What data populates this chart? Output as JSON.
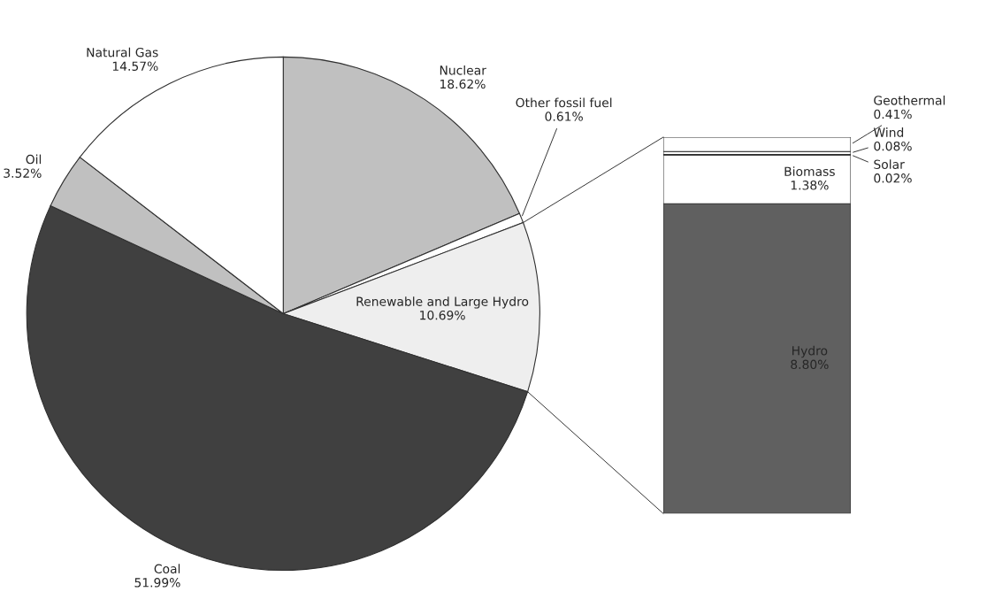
{
  "chart_data": [
    {
      "type": "pie",
      "categories": [
        "Nuclear",
        "Other fossil fuel",
        "Renewable and Large Hydro",
        "Coal",
        "Oil",
        "Natural Gas"
      ],
      "values": [
        18.62,
        0.61,
        10.69,
        51.99,
        3.52,
        14.57
      ],
      "colors": [
        "#c0c0c0",
        "#ffffff",
        "#eeeeee",
        "#404040",
        "#c0c0c0",
        "#ffffff"
      ],
      "value_labels": [
        "18.62%",
        "0.61%",
        "10.69%",
        "51.99%",
        "3.52%",
        "14.57%"
      ]
    },
    {
      "type": "bar",
      "stacked": true,
      "categories": [
        null
      ],
      "series": [
        {
          "name": "Hydro",
          "color": "#606060",
          "values": [
            8.8
          ],
          "value_labels": [
            "8.80%"
          ]
        },
        {
          "name": "Biomass",
          "color": "#ffffff",
          "values": [
            1.38
          ],
          "value_labels": [
            "1.38%"
          ]
        },
        {
          "name": "Solar",
          "color": "#ffffff",
          "values": [
            0.02
          ],
          "value_labels": [
            "0.02%"
          ]
        },
        {
          "name": "Wind",
          "color": "#ffffff",
          "values": [
            0.08
          ],
          "value_labels": [
            "0.08%"
          ]
        },
        {
          "name": "Geothermal",
          "color": "#ffffff",
          "values": [
            0.41
          ],
          "value_labels": [
            "0.41%"
          ]
        }
      ]
    }
  ]
}
